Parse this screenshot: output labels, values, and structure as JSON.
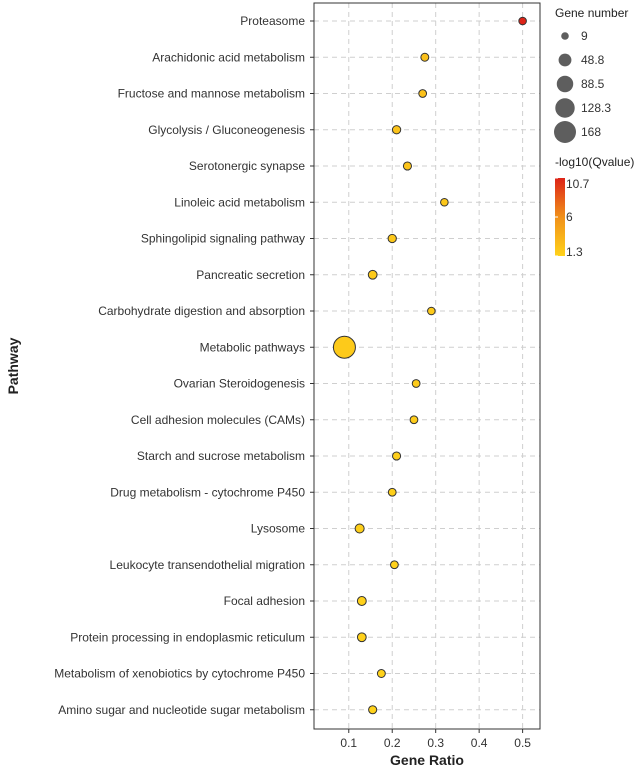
{
  "chart_data": {
    "type": "scatter",
    "xlabel": "Gene Ratio",
    "ylabel": "Pathway",
    "xlim": [
      0.02,
      0.54
    ],
    "xticks": [
      0.1,
      0.2,
      0.3,
      0.4,
      0.5
    ],
    "xtick_labels": [
      "0.1",
      "0.2",
      "0.3",
      "0.4",
      "0.5"
    ],
    "grid": true,
    "points": [
      {
        "pathway": "Proteasome",
        "gene_ratio": 0.5,
        "gene_number": 9,
        "neg_log10_q": 10.7
      },
      {
        "pathway": "Arachidonic acid metabolism",
        "gene_ratio": 0.275,
        "gene_number": 11,
        "neg_log10_q": 2.6
      },
      {
        "pathway": "Fructose and mannose metabolism",
        "gene_ratio": 0.27,
        "gene_number": 10,
        "neg_log10_q": 2.5
      },
      {
        "pathway": "Glycolysis / Gluconeogenesis",
        "gene_ratio": 0.21,
        "gene_number": 13,
        "neg_log10_q": 2.4
      },
      {
        "pathway": "Serotonergic synapse",
        "gene_ratio": 0.235,
        "gene_number": 12,
        "neg_log10_q": 2.3
      },
      {
        "pathway": "Linoleic acid metabolism",
        "gene_ratio": 0.32,
        "gene_number": 9,
        "neg_log10_q": 2.1
      },
      {
        "pathway": "Sphingolipid signaling pathway",
        "gene_ratio": 0.2,
        "gene_number": 13,
        "neg_log10_q": 2.0
      },
      {
        "pathway": "Pancreatic secretion",
        "gene_ratio": 0.155,
        "gene_number": 16,
        "neg_log10_q": 1.9
      },
      {
        "pathway": "Carbohydrate digestion and absorption",
        "gene_ratio": 0.29,
        "gene_number": 9,
        "neg_log10_q": 1.9
      },
      {
        "pathway": "Metabolic pathways",
        "gene_ratio": 0.09,
        "gene_number": 168,
        "neg_log10_q": 1.9
      },
      {
        "pathway": "Ovarian Steroidogenesis",
        "gene_ratio": 0.255,
        "gene_number": 10,
        "neg_log10_q": 1.8
      },
      {
        "pathway": "Cell adhesion molecules (CAMs)",
        "gene_ratio": 0.25,
        "gene_number": 10,
        "neg_log10_q": 1.7
      },
      {
        "pathway": "Starch and sucrose metabolism",
        "gene_ratio": 0.21,
        "gene_number": 12,
        "neg_log10_q": 1.6
      },
      {
        "pathway": "Drug metabolism - cytochrome P450",
        "gene_ratio": 0.2,
        "gene_number": 10,
        "neg_log10_q": 1.5
      },
      {
        "pathway": "Lysosome",
        "gene_ratio": 0.125,
        "gene_number": 18,
        "neg_log10_q": 1.5
      },
      {
        "pathway": "Leukocyte transendothelial migration",
        "gene_ratio": 0.205,
        "gene_number": 10,
        "neg_log10_q": 1.4
      },
      {
        "pathway": "Focal adhesion",
        "gene_ratio": 0.13,
        "gene_number": 17,
        "neg_log10_q": 1.4
      },
      {
        "pathway": "Protein processing in endoplasmic reticulum",
        "gene_ratio": 0.13,
        "gene_number": 16,
        "neg_log10_q": 1.35
      },
      {
        "pathway": "Metabolism of xenobiotics by cytochrome P450",
        "gene_ratio": 0.175,
        "gene_number": 11,
        "neg_log10_q": 1.3
      },
      {
        "pathway": "Amino sugar and nucleotide sugar metabolism",
        "gene_ratio": 0.155,
        "gene_number": 12,
        "neg_log10_q": 1.3
      }
    ],
    "size_legend": {
      "title": "Gene number",
      "values": [
        9,
        48.8,
        88.5,
        128.3,
        168
      ],
      "labels": [
        "9",
        "48.8",
        "88.5",
        "128.3",
        "168"
      ]
    },
    "color_legend": {
      "title": "-log10(Qvalue)",
      "min": 1.3,
      "max": 10.7,
      "labels": [
        "10.7",
        "6",
        "1.3"
      ],
      "label_values": [
        10.7,
        6,
        1.3
      ],
      "colors": [
        "#ffd21a",
        "#f0901a",
        "#dd2418"
      ]
    }
  }
}
